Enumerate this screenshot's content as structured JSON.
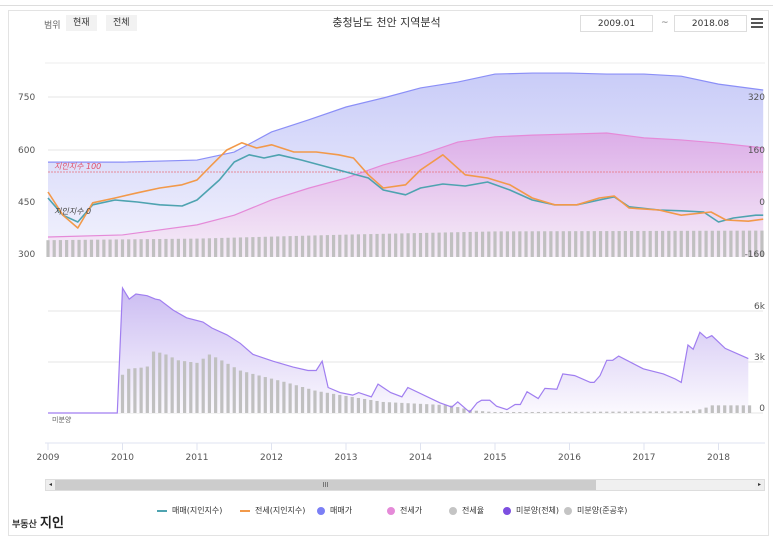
{
  "header": {
    "range_label": "범위",
    "btn_current": "현재",
    "btn_all": "전체",
    "title": "충청남도 천안 지역분석",
    "date_from": "2009.01",
    "date_sep": "~",
    "date_to": "2018.08"
  },
  "logo": {
    "small": "부동산",
    "big": "지인"
  },
  "legend": [
    {
      "label": "매매(지인지수)",
      "color": "#4ea3b0",
      "kind": "line"
    },
    {
      "label": "전세(지인지수)",
      "color": "#f2994a",
      "kind": "line"
    },
    {
      "label": "매매가",
      "color": "#7b7ff5",
      "kind": "dot"
    },
    {
      "label": "전세가",
      "color": "#e58ad8",
      "kind": "dot"
    },
    {
      "label": "전세율",
      "color": "#c4c4c4",
      "kind": "dot"
    },
    {
      "label": "미분양(전체)",
      "color": "#7d4fe0",
      "kind": "dot"
    },
    {
      "label": "미분양(준공후)",
      "color": "#c4c4c4",
      "kind": "dot"
    }
  ],
  "scrollbar": {
    "grip": "III",
    "left": "◂",
    "right": "▸"
  },
  "chart_data": [
    {
      "type": "line",
      "title": "충청남도 천안 지역분석",
      "xlabels": [
        "2009",
        "2010",
        "2011",
        "2012",
        "2013",
        "2014",
        "2015",
        "2016",
        "2017",
        "2018"
      ],
      "left_axis": {
        "ticks": [
          "750",
          "600",
          "450",
          "300"
        ],
        "values": [
          750,
          600,
          450,
          300
        ]
      },
      "right_axis": {
        "ticks": [
          "320",
          "160",
          "0",
          "-160"
        ],
        "values": [
          320,
          160,
          0,
          -160
        ]
      },
      "annotations": {
        "index100": "지인지수 100",
        "index0": "지인지수 0"
      },
      "series": [
        {
          "name": "매매가",
          "points": [
            [
              2009,
              565
            ],
            [
              2010,
              565
            ],
            [
              2011,
              571
            ],
            [
              2011.5,
              594
            ],
            [
              2012,
              652
            ],
            [
              2012.5,
              687
            ],
            [
              2013,
              724
            ],
            [
              2013.5,
              750
            ],
            [
              2014,
              779
            ],
            [
              2014.5,
              796
            ],
            [
              2015,
              819
            ],
            [
              2015.5,
              822
            ],
            [
              2016,
              822
            ],
            [
              2016.5,
              819
            ],
            [
              2017,
              819
            ],
            [
              2017.5,
              813
            ],
            [
              2018,
              790
            ],
            [
              2018.6,
              773
            ]
          ]
        },
        {
          "name": "전세가",
          "points": [
            [
              2009,
              349
            ],
            [
              2010,
              355
            ],
            [
              2011,
              384
            ],
            [
              2011.5,
              412
            ],
            [
              2012,
              456
            ],
            [
              2012.5,
              490
            ],
            [
              2013,
              519
            ],
            [
              2013.5,
              557
            ],
            [
              2014,
              586
            ],
            [
              2014.5,
              623
            ],
            [
              2015,
              638
            ],
            [
              2015.5,
              643
            ],
            [
              2016,
              646
            ],
            [
              2016.5,
              649
            ],
            [
              2017,
              635
            ],
            [
              2017.5,
              629
            ],
            [
              2018,
              620
            ],
            [
              2018.6,
              606
            ]
          ]
        },
        {
          "name": "매매(지인지수)",
          "points": [
            [
              2009,
              35
            ],
            [
              2009.2,
              -8
            ],
            [
              2009.4,
              -25
            ],
            [
              2009.6,
              18
            ],
            [
              2009.9,
              30
            ],
            [
              2010.2,
              25
            ],
            [
              2010.5,
              18
            ],
            [
              2010.8,
              15
            ],
            [
              2011,
              30
            ],
            [
              2011.3,
              80
            ],
            [
              2011.5,
              125
            ],
            [
              2011.7,
              143
            ],
            [
              2011.9,
              135
            ],
            [
              2012.1,
              143
            ],
            [
              2012.4,
              130
            ],
            [
              2012.8,
              110
            ],
            [
              2013,
              100
            ],
            [
              2013.3,
              85
            ],
            [
              2013.5,
              55
            ],
            [
              2013.8,
              43
            ],
            [
              2014,
              60
            ],
            [
              2014.3,
              70
            ],
            [
              2014.6,
              65
            ],
            [
              2014.9,
              75
            ],
            [
              2015.2,
              55
            ],
            [
              2015.5,
              30
            ],
            [
              2015.8,
              18
            ],
            [
              2016.1,
              18
            ],
            [
              2016.4,
              30
            ],
            [
              2016.6,
              38
            ],
            [
              2016.8,
              13
            ],
            [
              2017.2,
              5
            ],
            [
              2017.5,
              3
            ],
            [
              2017.8,
              0
            ],
            [
              2018,
              -25
            ],
            [
              2018.2,
              -15
            ],
            [
              2018.5,
              -8
            ],
            [
              2018.6,
              -8
            ]
          ]
        },
        {
          "name": "전세(지인지수)",
          "points": [
            [
              2009,
              50
            ],
            [
              2009.2,
              -8
            ],
            [
              2009.4,
              -40
            ],
            [
              2009.6,
              23
            ],
            [
              2009.9,
              35
            ],
            [
              2010.2,
              48
            ],
            [
              2010.5,
              60
            ],
            [
              2010.8,
              68
            ],
            [
              2011,
              80
            ],
            [
              2011.2,
              118
            ],
            [
              2011.4,
              155
            ],
            [
              2011.6,
              173
            ],
            [
              2011.8,
              160
            ],
            [
              2012,
              168
            ],
            [
              2012.3,
              150
            ],
            [
              2012.6,
              150
            ],
            [
              2012.9,
              143
            ],
            [
              2013.1,
              135
            ],
            [
              2013.3,
              93
            ],
            [
              2013.5,
              60
            ],
            [
              2013.8,
              68
            ],
            [
              2014,
              105
            ],
            [
              2014.3,
              143
            ],
            [
              2014.6,
              93
            ],
            [
              2014.9,
              85
            ],
            [
              2015.2,
              68
            ],
            [
              2015.5,
              35
            ],
            [
              2015.8,
              18
            ],
            [
              2016.1,
              18
            ],
            [
              2016.4,
              35
            ],
            [
              2016.6,
              40
            ],
            [
              2016.8,
              10
            ],
            [
              2017.2,
              5
            ],
            [
              2017.5,
              -8
            ],
            [
              2017.9,
              0
            ],
            [
              2018.1,
              -20
            ],
            [
              2018.4,
              -23
            ],
            [
              2018.6,
              -18
            ]
          ]
        },
        {
          "name": "전세율",
          "type": "bar",
          "points": [
            [
              2009,
              61
            ],
            [
              2011,
              63
            ],
            [
              2013,
              68
            ],
            [
              2015,
              72
            ],
            [
              2018.6,
              73
            ]
          ]
        }
      ]
    },
    {
      "type": "line",
      "ylabel": "미분양",
      "right_axis": {
        "ticks": [
          "6k",
          "3k",
          "0"
        ],
        "values": [
          6000,
          3000,
          0
        ]
      },
      "series": [
        {
          "name": "미분양(전체)",
          "points": [
            [
              2009,
              0
            ],
            [
              2009.93,
              0
            ],
            [
              2010,
              7350
            ],
            [
              2010.09,
              6700
            ],
            [
              2010.18,
              7000
            ],
            [
              2010.33,
              6900
            ],
            [
              2010.44,
              6700
            ],
            [
              2010.5,
              6650
            ],
            [
              2010.68,
              6050
            ],
            [
              2010.86,
              5600
            ],
            [
              2011.08,
              5350
            ],
            [
              2011.2,
              5000
            ],
            [
              2011.4,
              4600
            ],
            [
              2011.58,
              4100
            ],
            [
              2011.75,
              3450
            ],
            [
              2012.02,
              3050
            ],
            [
              2012.29,
              2700
            ],
            [
              2012.49,
              2500
            ],
            [
              2012.6,
              2500
            ],
            [
              2012.68,
              3050
            ],
            [
              2012.76,
              1500
            ],
            [
              2012.92,
              1200
            ],
            [
              2013.09,
              1050
            ],
            [
              2013.17,
              1200
            ],
            [
              2013.34,
              950
            ],
            [
              2013.43,
              1700
            ],
            [
              2013.6,
              1200
            ],
            [
              2013.75,
              950
            ],
            [
              2013.83,
              1500
            ],
            [
              2014.26,
              600
            ],
            [
              2014.42,
              350
            ],
            [
              2014.5,
              650
            ],
            [
              2014.66,
              50
            ],
            [
              2014.76,
              600
            ],
            [
              2014.82,
              750
            ],
            [
              2014.93,
              750
            ],
            [
              2015.02,
              400
            ],
            [
              2015.16,
              200
            ],
            [
              2015.27,
              500
            ],
            [
              2015.34,
              500
            ],
            [
              2015.43,
              1250
            ],
            [
              2015.58,
              850
            ],
            [
              2015.67,
              1450
            ],
            [
              2015.83,
              1400
            ],
            [
              2015.91,
              2300
            ],
            [
              2016.07,
              2200
            ],
            [
              2016.28,
              1800
            ],
            [
              2016.33,
              1800
            ],
            [
              2016.41,
              2200
            ],
            [
              2016.5,
              3100
            ],
            [
              2016.58,
              3100
            ],
            [
              2016.66,
              3350
            ],
            [
              2016.99,
              2600
            ],
            [
              2017.26,
              2300
            ],
            [
              2017.42,
              2000
            ],
            [
              2017.5,
              1800
            ],
            [
              2017.59,
              4000
            ],
            [
              2017.66,
              3750
            ],
            [
              2017.75,
              4750
            ],
            [
              2017.84,
              4400
            ],
            [
              2017.91,
              4550
            ],
            [
              2018.09,
              3800
            ],
            [
              2018.4,
              3200
            ]
          ]
        },
        {
          "name": "미분양(준공후)",
          "type": "bar",
          "points": [
            [
              2010,
              2250
            ],
            [
              2010.08,
              2600
            ],
            [
              2010.33,
              2700
            ],
            [
              2010.42,
              3650
            ],
            [
              2010.58,
              3450
            ],
            [
              2010.75,
              3100
            ],
            [
              2011,
              2950
            ],
            [
              2011.17,
              3450
            ],
            [
              2011.33,
              3100
            ],
            [
              2011.58,
              2500
            ],
            [
              2011.75,
              2300
            ],
            [
              2012.2,
              1800
            ],
            [
              2012.6,
              1300
            ],
            [
              2013,
              1000
            ],
            [
              2013.5,
              650
            ],
            [
              2014.4,
              450
            ],
            [
              2014.7,
              150
            ],
            [
              2015,
              50
            ],
            [
              2017.6,
              100
            ],
            [
              2017.8,
              250
            ],
            [
              2017.9,
              450
            ],
            [
              2018.4,
              450
            ]
          ]
        }
      ]
    }
  ]
}
